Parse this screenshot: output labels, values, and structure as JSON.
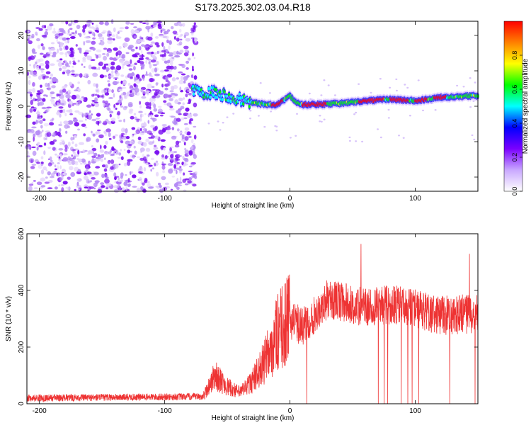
{
  "title": "S173.2025.302.03.04.R18",
  "chart_data": [
    {
      "type": "heatmap",
      "name": "spectrogram",
      "xlabel": "Height of straight line (km)",
      "ylabel": "Frequency (Hz)",
      "xlim": [
        -210,
        150
      ],
      "ylim": [
        -24,
        24
      ],
      "xticks": [
        -200,
        -100,
        0,
        100
      ],
      "yticks": [
        20,
        10,
        0,
        -10,
        -20
      ],
      "noise_region_x": [
        -210,
        -75
      ],
      "signal_ridge": {
        "x": [
          -78,
          -70,
          -60,
          -50,
          -40,
          -30,
          -20,
          -10,
          0,
          5,
          10,
          20,
          40,
          60,
          80,
          100,
          120,
          150
        ],
        "frequency": [
          5,
          4,
          4,
          3,
          2,
          1,
          0.5,
          0.5,
          3,
          1,
          0.5,
          0.5,
          0.8,
          1.5,
          2,
          1.5,
          2.5,
          3
        ]
      },
      "peak_bands_x": [
        [
          -15,
          -5
        ],
        [
          10,
          30
        ],
        [
          55,
          75
        ],
        [
          80,
          95
        ],
        [
          100,
          110
        ],
        [
          115,
          125
        ]
      ]
    },
    {
      "type": "colorbar",
      "label": "Normalized spectral amplitude",
      "range": [
        0,
        1
      ],
      "ticks": [
        "0.0",
        "0.2",
        "0.4",
        "0.6",
        "0.8"
      ],
      "colormap": [
        "#ffffff",
        "#c9a8ff",
        "#7a00ff",
        "#0000ff",
        "#00ffff",
        "#00ff00",
        "#ffff00",
        "#ff8000",
        "#ff0000"
      ]
    },
    {
      "type": "line",
      "name": "snr",
      "xlabel": "Height of straight line (km)",
      "ylabel": "SNR (10 * v/v)",
      "xlim": [
        -210,
        150
      ],
      "ylim": [
        0,
        600
      ],
      "xticks": [
        -200,
        -100,
        0,
        100
      ],
      "yticks": [
        600,
        400,
        200,
        0
      ],
      "color": "#ee3333",
      "approx_levels": {
        "x": [
          -210,
          -70,
          -65,
          -60,
          -50,
          -40,
          -30,
          -20,
          -10,
          0,
          10,
          20,
          30,
          40,
          60,
          80,
          100,
          120,
          150
        ],
        "snr": [
          15,
          20,
          60,
          100,
          60,
          40,
          80,
          150,
          250,
          300,
          270,
          320,
          370,
          360,
          340,
          350,
          340,
          310,
          320
        ]
      }
    }
  ]
}
